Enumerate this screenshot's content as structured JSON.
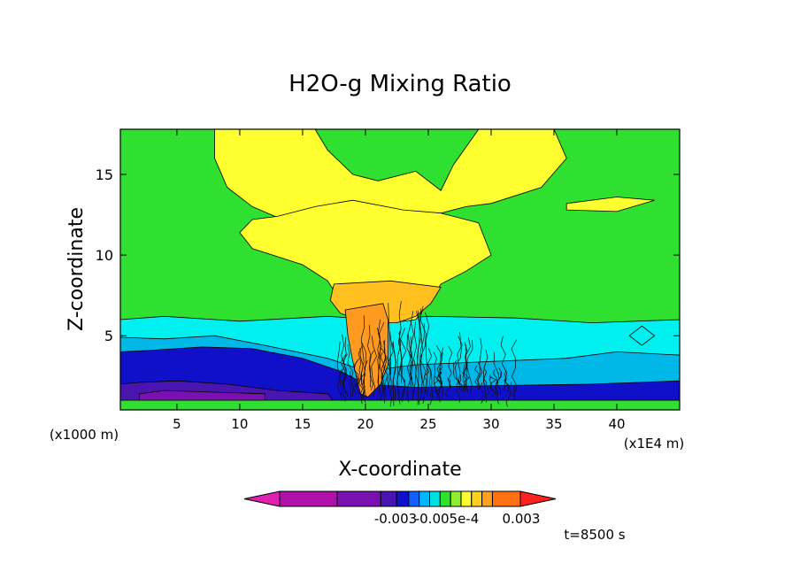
{
  "chart_data": {
    "type": "heatmap",
    "title": "H2O-g Mixing Ratio",
    "xlabel": "X-coordinate",
    "ylabel": "Z-coordinate",
    "x_unit_left": "(x1000 m)",
    "x_unit_right": "(x1E4 m)",
    "xticks": [
      5,
      10,
      15,
      20,
      25,
      30,
      35,
      40
    ],
    "yticks": [
      5,
      10,
      15
    ],
    "xlim": [
      0.5,
      45
    ],
    "ylim": [
      0.4,
      17.8
    ],
    "colorbar": {
      "labels": [
        "-0.003",
        "-0.005e-4",
        "0.003"
      ],
      "colors": [
        "#e020b0",
        "#b010a8",
        "#7a10b0",
        "#4a14b0",
        "#1010c8",
        "#1060ff",
        "#00b8ff",
        "#00e0e0",
        "#30e030",
        "#90ee30",
        "#ffff30",
        "#ffd020",
        "#ffa020",
        "#ff7010",
        "#ff2020"
      ]
    },
    "time_label": "t=8500 s",
    "regions": [
      {
        "color": "#30e030",
        "points": [
          [
            0.5,
            0.4
          ],
          [
            45,
            0.4
          ],
          [
            45,
            17.8
          ],
          [
            0.5,
            17.8
          ]
        ]
      },
      {
        "color": "#00f0f0",
        "points": [
          [
            0.5,
            0.4
          ],
          [
            45,
            0.4
          ],
          [
            45,
            6.0
          ],
          [
            38,
            5.8
          ],
          [
            32,
            6.1
          ],
          [
            25,
            6.2
          ],
          [
            21,
            6.0
          ],
          [
            17,
            6.2
          ],
          [
            10,
            5.9
          ],
          [
            4,
            6.2
          ],
          [
            0.5,
            6.0
          ]
        ]
      },
      {
        "color": "#00b8e8",
        "points": [
          [
            0.5,
            0.4
          ],
          [
            45,
            0.4
          ],
          [
            45,
            3.8
          ],
          [
            40,
            4.0
          ],
          [
            36,
            3.6
          ],
          [
            30,
            3.4
          ],
          [
            24,
            3.2
          ],
          [
            20,
            2.8
          ],
          [
            17,
            3.6
          ],
          [
            12,
            4.4
          ],
          [
            8,
            5.0
          ],
          [
            4,
            4.8
          ],
          [
            0.5,
            4.9
          ]
        ]
      },
      {
        "color": "#1010c8",
        "points": [
          [
            0.5,
            0.4
          ],
          [
            45,
            0.4
          ],
          [
            45,
            2.2
          ],
          [
            38,
            2.0
          ],
          [
            30,
            1.9
          ],
          [
            24,
            1.8
          ],
          [
            20,
            2.0
          ],
          [
            18,
            2.8
          ],
          [
            15,
            3.6
          ],
          [
            11,
            4.2
          ],
          [
            7,
            4.3
          ],
          [
            3,
            4.1
          ],
          [
            0.5,
            4.0
          ]
        ]
      },
      {
        "color": "#4a14b0",
        "points": [
          [
            0.5,
            0.4
          ],
          [
            18,
            0.4
          ],
          [
            17,
            1.4
          ],
          [
            13,
            1.6
          ],
          [
            9,
            2.0
          ],
          [
            5,
            2.2
          ],
          [
            2,
            2.1
          ],
          [
            0.5,
            2.0
          ]
        ]
      },
      {
        "color": "#7a10b0",
        "points": [
          [
            2,
            0.9
          ],
          [
            12,
            0.9
          ],
          [
            12,
            1.4
          ],
          [
            8,
            1.5
          ],
          [
            4,
            1.6
          ],
          [
            2,
            1.4
          ]
        ]
      },
      {
        "color": "#30e030",
        "points": [
          [
            0.5,
            0.4
          ],
          [
            45,
            0.4
          ],
          [
            45,
            1.0
          ],
          [
            0.5,
            1.0
          ]
        ]
      },
      {
        "color": "#ffff30",
        "points": [
          [
            8,
            17.8
          ],
          [
            16,
            17.8
          ],
          [
            17,
            16.5
          ],
          [
            19,
            15.0
          ],
          [
            21,
            14.6
          ],
          [
            24,
            15.2
          ],
          [
            26,
            14.0
          ],
          [
            27,
            15.6
          ],
          [
            29,
            17.8
          ],
          [
            35,
            17.8
          ],
          [
            36,
            16.0
          ],
          [
            34,
            14.2
          ],
          [
            30,
            13.2
          ],
          [
            28,
            13.0
          ],
          [
            26,
            12.6
          ],
          [
            24,
            12.4
          ],
          [
            22,
            11.8
          ],
          [
            21,
            11.4
          ],
          [
            18,
            11.8
          ],
          [
            14,
            12.0
          ],
          [
            11,
            13.0
          ],
          [
            9,
            14.2
          ],
          [
            8,
            16.0
          ]
        ]
      },
      {
        "color": "#ffff30",
        "points": [
          [
            13,
            12.4
          ],
          [
            16,
            13.0
          ],
          [
            19,
            13.4
          ],
          [
            23,
            12.8
          ],
          [
            26,
            12.6
          ],
          [
            29,
            12.0
          ],
          [
            30,
            10.0
          ],
          [
            28,
            9.0
          ],
          [
            26,
            8.2
          ],
          [
            25,
            7.0
          ],
          [
            24,
            6.0
          ],
          [
            22,
            5.8
          ],
          [
            20,
            6.0
          ],
          [
            18,
            7.2
          ],
          [
            17,
            8.4
          ],
          [
            15,
            9.4
          ],
          [
            11,
            10.4
          ],
          [
            10,
            11.4
          ],
          [
            11,
            12.2
          ]
        ]
      },
      {
        "color": "#ffff30",
        "points": [
          [
            36,
            13.2
          ],
          [
            40,
            13.6
          ],
          [
            43,
            13.4
          ],
          [
            40,
            12.7
          ],
          [
            36,
            12.8
          ]
        ]
      },
      {
        "color": "#ffc020",
        "points": [
          [
            17.5,
            8.2
          ],
          [
            22,
            8.4
          ],
          [
            26,
            8.0
          ],
          [
            25.2,
            7.0
          ],
          [
            24,
            6.2
          ],
          [
            22.5,
            5.8
          ],
          [
            20,
            5.8
          ],
          [
            18,
            6.4
          ],
          [
            17.2,
            7.2
          ]
        ]
      },
      {
        "color": "#ff9a20",
        "points": [
          [
            18.4,
            6.6
          ],
          [
            21.4,
            7.0
          ],
          [
            21.8,
            6.0
          ],
          [
            21.8,
            3.2
          ],
          [
            21.2,
            2.0
          ],
          [
            20.2,
            1.2
          ],
          [
            19.6,
            1.4
          ],
          [
            19.0,
            3.4
          ],
          [
            18.6,
            5.0
          ]
        ]
      },
      {
        "color": "#00f0f0",
        "points": [
          [
            41,
            5.0
          ],
          [
            42,
            4.4
          ],
          [
            43,
            5.0
          ],
          [
            42,
            5.6
          ]
        ]
      }
    ]
  }
}
